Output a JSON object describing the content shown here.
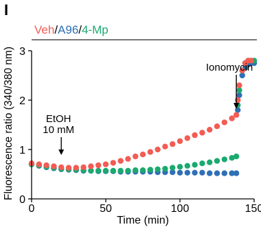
{
  "panel_label": "I",
  "colors": {
    "veh": "#f25c54",
    "a96": "#2f6fb5",
    "mp4": "#1aaa6f",
    "condition_bar": "#777777"
  },
  "chart_data": {
    "type": "scatter",
    "title": "",
    "xlabel": "Time (min)",
    "ylabel": "Fluorescence ratio (340/380 nm)",
    "xlim": [
      0,
      150
    ],
    "ylim": [
      0,
      3
    ],
    "xticks": [
      0,
      50,
      100,
      150
    ],
    "yticks": [
      0,
      1,
      2,
      3
    ],
    "legend": [
      "Veh",
      "A96",
      "4-Mp"
    ],
    "legend_separator": "/",
    "grid": false,
    "annotations": [
      {
        "text": "EtOH",
        "x": 20,
        "y": 1.0
      },
      {
        "text": "10 mM",
        "x": 20,
        "y": 1.0
      },
      {
        "text": "Ionomycin",
        "x": 138,
        "y": 1.75
      }
    ],
    "series": [
      {
        "name": "A96",
        "color": "#2f6fb5",
        "x": [
          0,
          5,
          10,
          15,
          20,
          25,
          30,
          35,
          40,
          45,
          50,
          55,
          60,
          65,
          70,
          75,
          80,
          85,
          90,
          95,
          100,
          105,
          110,
          115,
          120,
          125,
          130,
          135,
          138,
          139,
          140,
          142,
          144,
          146,
          148,
          150
        ],
        "y": [
          0.7,
          0.67,
          0.64,
          0.62,
          0.6,
          0.59,
          0.58,
          0.57,
          0.57,
          0.56,
          0.56,
          0.56,
          0.55,
          0.55,
          0.55,
          0.55,
          0.55,
          0.54,
          0.54,
          0.54,
          0.53,
          0.53,
          0.53,
          0.53,
          0.52,
          0.52,
          0.52,
          0.52,
          0.52,
          1.8,
          2.1,
          2.5,
          2.65,
          2.72,
          2.75,
          2.75
        ]
      },
      {
        "name": "4-Mp",
        "color": "#1aaa6f",
        "x": [
          0,
          5,
          10,
          15,
          20,
          25,
          30,
          35,
          40,
          45,
          50,
          55,
          60,
          65,
          70,
          75,
          80,
          85,
          90,
          95,
          100,
          105,
          110,
          115,
          120,
          125,
          130,
          135,
          138,
          139,
          140,
          142,
          144,
          146,
          148,
          150
        ],
        "y": [
          0.7,
          0.68,
          0.65,
          0.63,
          0.61,
          0.6,
          0.59,
          0.58,
          0.57,
          0.57,
          0.57,
          0.57,
          0.57,
          0.57,
          0.58,
          0.58,
          0.59,
          0.6,
          0.61,
          0.63,
          0.65,
          0.67,
          0.69,
          0.72,
          0.74,
          0.77,
          0.8,
          0.83,
          0.86,
          1.9,
          2.2,
          2.6,
          2.75,
          2.8,
          2.8,
          2.8
        ]
      },
      {
        "name": "Veh",
        "color": "#f25c54",
        "x": [
          0,
          5,
          10,
          15,
          20,
          25,
          30,
          35,
          40,
          45,
          50,
          55,
          60,
          65,
          70,
          75,
          80,
          85,
          90,
          95,
          100,
          105,
          110,
          115,
          120,
          125,
          130,
          135,
          138,
          139,
          140,
          142,
          144,
          146,
          148
        ],
        "y": [
          0.72,
          0.7,
          0.68,
          0.66,
          0.64,
          0.63,
          0.63,
          0.64,
          0.66,
          0.68,
          0.7,
          0.73,
          0.77,
          0.81,
          0.86,
          0.9,
          0.95,
          1.0,
          1.06,
          1.11,
          1.17,
          1.23,
          1.29,
          1.34,
          1.4,
          1.47,
          1.55,
          1.63,
          1.7,
          2.0,
          2.3,
          2.6,
          2.75,
          2.8,
          2.8
        ]
      }
    ]
  }
}
